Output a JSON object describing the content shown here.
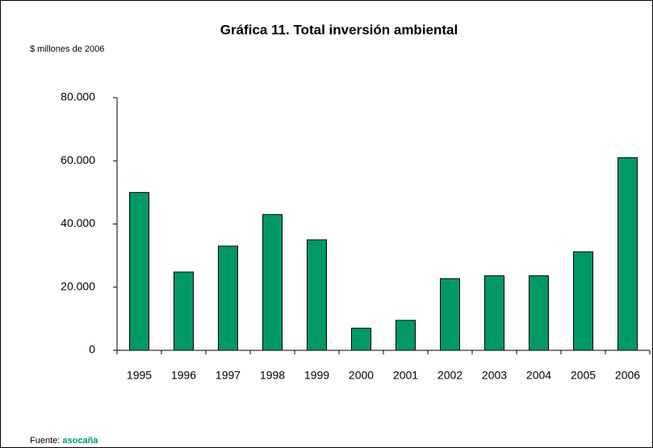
{
  "chart_data": {
    "type": "bar",
    "title": "Gráfica 11. Total inversión ambiental",
    "y_label": "$ millones de 2006",
    "source_label": "Fuente:",
    "source": "asocaña",
    "categories": [
      "1995",
      "1996",
      "1997",
      "1998",
      "1999",
      "2000",
      "2001",
      "2002",
      "2003",
      "2004",
      "2005",
      "2006"
    ],
    "values": [
      50000,
      24800,
      33000,
      43000,
      35000,
      7000,
      9500,
      22700,
      23600,
      23600,
      31200,
      61000
    ],
    "color": "#009966",
    "ylim": [
      0,
      80000
    ],
    "yticks": [
      0,
      {
        "value": 20000,
        "label": "20.000"
      },
      {
        "value": 40000,
        "label": "40.000"
      },
      {
        "value": 60000,
        "label": "60.000"
      },
      {
        "value": 80000,
        "label": "80.000"
      }
    ],
    "grid": false
  }
}
